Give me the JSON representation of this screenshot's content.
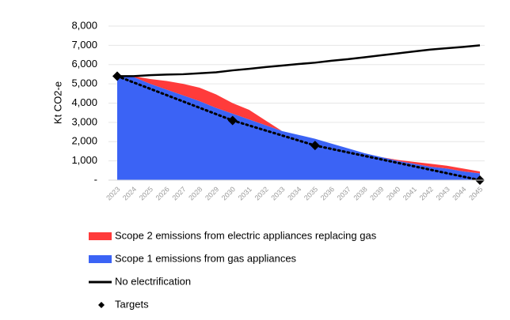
{
  "chart_data": {
    "type": "stacked_area_line",
    "y_label": "Kt CO2-e",
    "categories": [
      "2023",
      "2024",
      "2025",
      "2026",
      "2027",
      "2028",
      "2029",
      "2030",
      "2031",
      "2032",
      "2033",
      "2034",
      "2035",
      "2036",
      "2037",
      "2038",
      "2039",
      "2040",
      "2041",
      "2042",
      "2043",
      "2044",
      "2045"
    ],
    "ylim": [
      0,
      8000
    ],
    "yticks": [
      {
        "value": 0,
        "label": "-"
      },
      {
        "value": 1000,
        "label": "1,000"
      },
      {
        "value": 2000,
        "label": "2,000"
      },
      {
        "value": 3000,
        "label": "3,000"
      },
      {
        "value": 4000,
        "label": "4,000"
      },
      {
        "value": 5000,
        "label": "5,000"
      },
      {
        "value": 6000,
        "label": "6,000"
      },
      {
        "value": 7000,
        "label": "7,000"
      },
      {
        "value": 8000,
        "label": "8,000"
      }
    ],
    "grid": true,
    "series": [
      {
        "name": "Scope 2 emissions from electric appliances replacing gas",
        "color": "#ff3b3b",
        "kind": "area",
        "stack_on": 1,
        "values": [
          0,
          50,
          250,
          450,
          600,
          700,
          700,
          550,
          500,
          250,
          0,
          0,
          0,
          0,
          0,
          0,
          0,
          50,
          100,
          150,
          150,
          150,
          100
        ]
      },
      {
        "name": "Scope 1 emissions from gas appliances",
        "color": "#3b63f5",
        "kind": "area",
        "values": [
          5400,
          5350,
          5000,
          4700,
          4400,
          4100,
          3750,
          3450,
          3150,
          2850,
          2550,
          2350,
          2150,
          1900,
          1650,
          1400,
          1200,
          1000,
          850,
          700,
          600,
          450,
          350
        ]
      },
      {
        "name": "No electrification",
        "color": "#000000",
        "kind": "line",
        "values": [
          5400,
          5400,
          5450,
          5480,
          5500,
          5550,
          5600,
          5700,
          5780,
          5870,
          5950,
          6030,
          6100,
          6200,
          6280,
          6380,
          6480,
          6580,
          6680,
          6780,
          6850,
          6920,
          7000
        ]
      },
      {
        "name": "Targets",
        "color": "#000000",
        "kind": "targets",
        "values": [
          5400,
          null,
          null,
          null,
          null,
          null,
          null,
          3100,
          null,
          null,
          null,
          null,
          1800,
          null,
          null,
          null,
          null,
          null,
          null,
          null,
          null,
          null,
          0
        ]
      }
    ]
  }
}
